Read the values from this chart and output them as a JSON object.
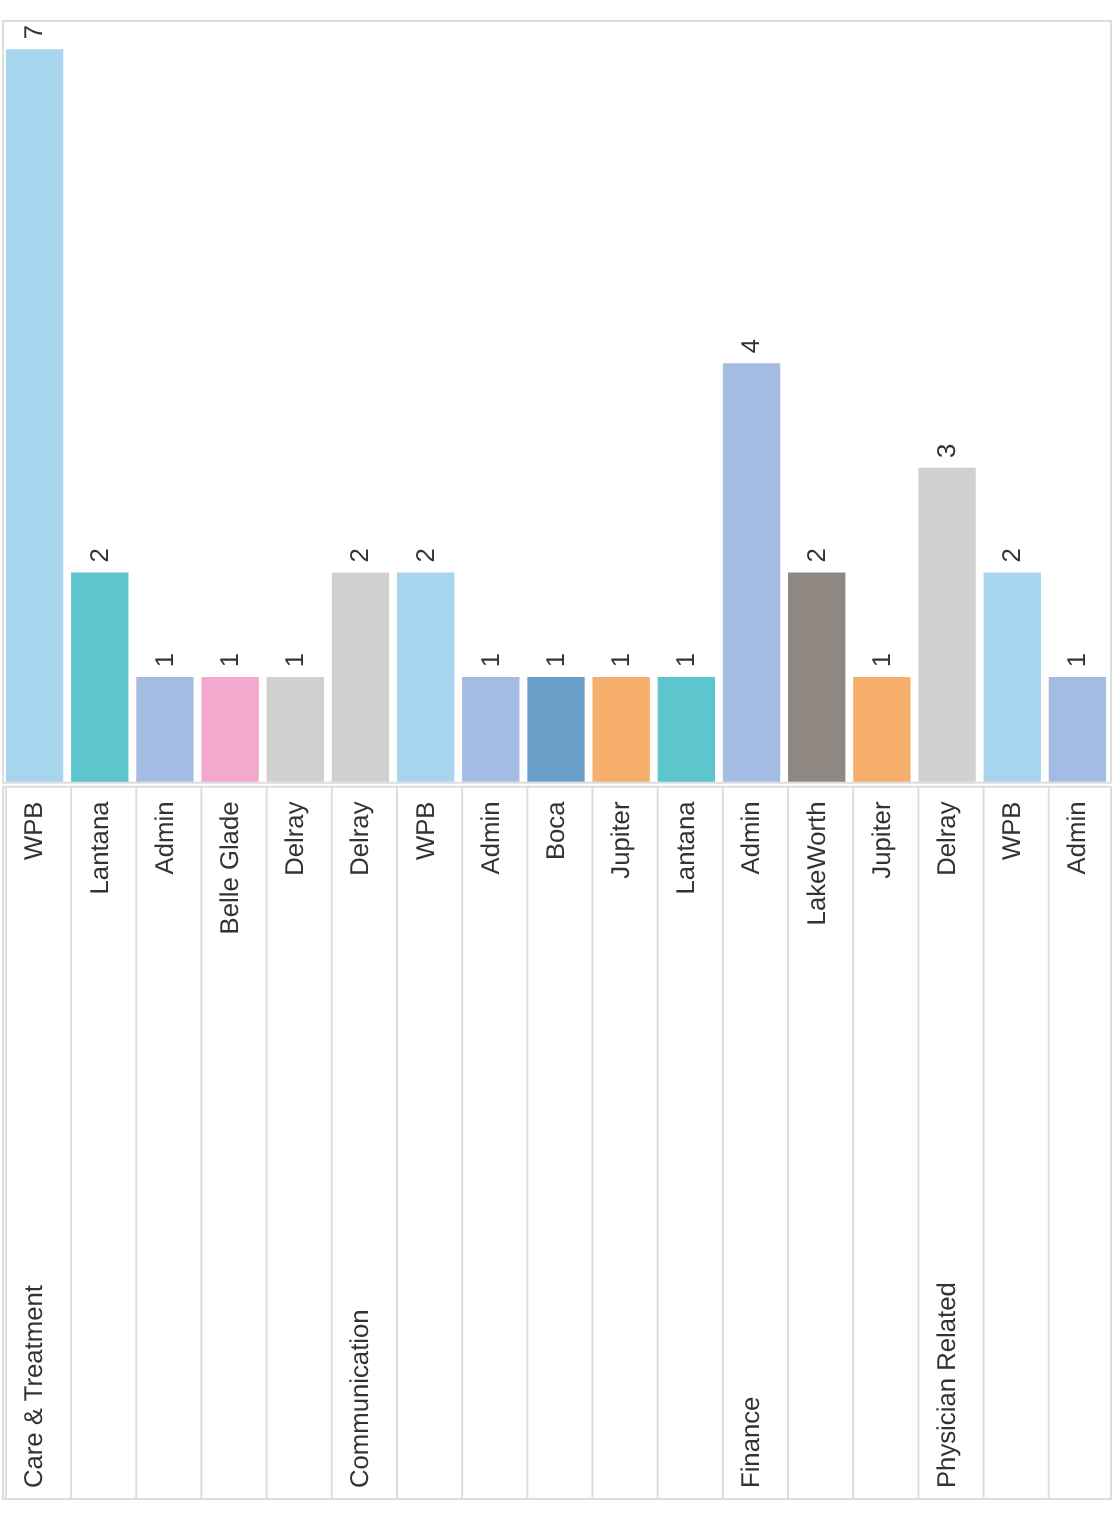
{
  "chart_data": {
    "type": "bar",
    "categories": [
      "WPB",
      "Lantana",
      "Admin",
      "Belle Glade",
      "Delray",
      "Delray",
      "WPB",
      "Admin",
      "Boca",
      "Jupiter",
      "Lantana",
      "Admin",
      "LakeWorth",
      "Jupiter",
      "Delray",
      "WPB",
      "Admin"
    ],
    "values": [
      7,
      2,
      1,
      1,
      1,
      2,
      2,
      1,
      1,
      1,
      1,
      4,
      2,
      1,
      3,
      2,
      1
    ],
    "colors": [
      "#a8d5ee",
      "#5cc5cd",
      "#a4bce2",
      "#f3a8cd",
      "#d0d0d0",
      "#d0d0d0",
      "#a8d5ee",
      "#a4bce2",
      "#6a9fca",
      "#f6ae6c",
      "#5cc5cd",
      "#a4bce2",
      "#8f8781",
      "#f6ae6c",
      "#d0d0d0",
      "#a8d5ee",
      "#a4bce2"
    ],
    "data_labels": true,
    "annotations": [
      "Care & Treatment",
      "Communication",
      "Finance",
      "Physician Related"
    ]
  }
}
